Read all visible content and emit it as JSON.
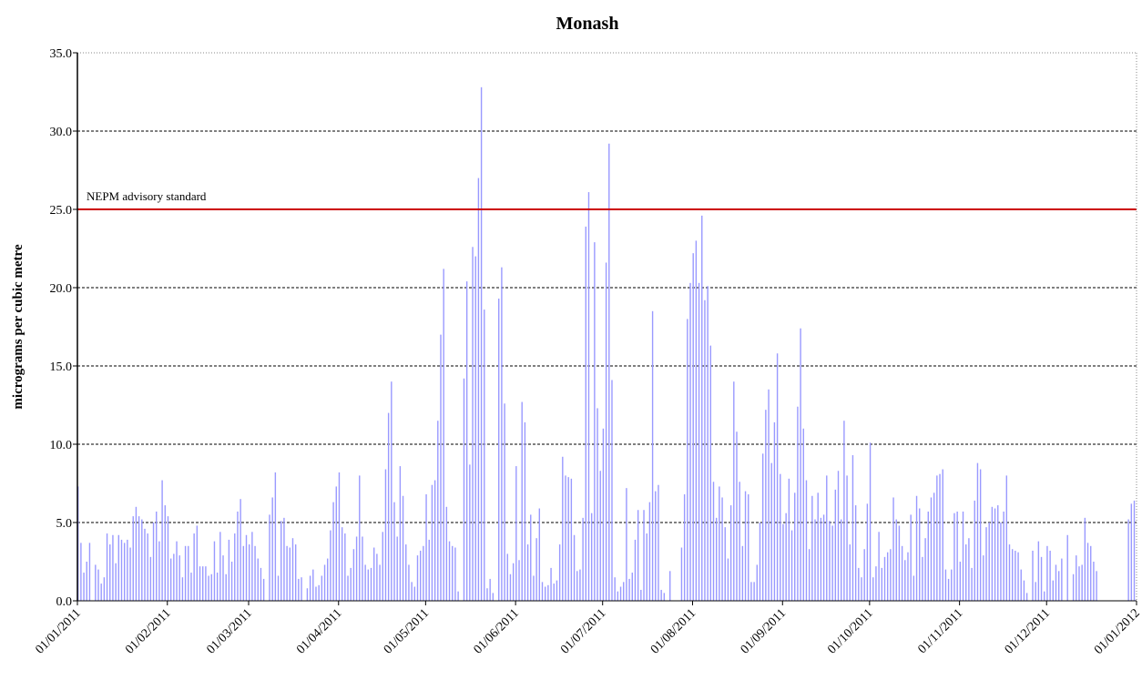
{
  "chart_data": {
    "type": "bar",
    "title": "Monash",
    "y_label": "micrograms per cubic metre",
    "color": "#9999ff",
    "ylim": [
      0,
      35
    ],
    "yticks": [
      {
        "value": 0,
        "label": "0.0"
      },
      {
        "value": 5,
        "label": "5.0"
      },
      {
        "value": 10,
        "label": "10.0"
      },
      {
        "value": 15,
        "label": "15.0"
      },
      {
        "value": 20,
        "label": "20.0"
      },
      {
        "value": 25,
        "label": "25.0"
      },
      {
        "value": 30,
        "label": "30.0"
      },
      {
        "value": 35,
        "label": "35.0"
      }
    ],
    "xlim": [
      "2011-01-01",
      "2012-01-01"
    ],
    "xticks": [
      {
        "value": "2011-01-01",
        "label": "01/01/2011"
      },
      {
        "value": "2011-02-01",
        "label": "01/02/2011"
      },
      {
        "value": "2011-03-01",
        "label": "01/03/2011"
      },
      {
        "value": "2011-04-01",
        "label": "01/04/2011"
      },
      {
        "value": "2011-05-01",
        "label": "01/05/2011"
      },
      {
        "value": "2011-06-01",
        "label": "01/06/2011"
      },
      {
        "value": "2011-07-01",
        "label": "01/07/2011"
      },
      {
        "value": "2011-08-01",
        "label": "01/08/2011"
      },
      {
        "value": "2011-09-01",
        "label": "01/09/2011"
      },
      {
        "value": "2011-10-01",
        "label": "01/10/2011"
      },
      {
        "value": "2011-11-01",
        "label": "01/11/2011"
      },
      {
        "value": "2011-12-01",
        "label": "01/12/2011"
      },
      {
        "value": "2012-01-01",
        "label": "01/01/2012"
      }
    ],
    "grid": true,
    "reference_lines": [
      {
        "value": 25,
        "label": "NEPM advisory standard",
        "color": "#cc0000"
      }
    ],
    "x": [
      "2011-01-01",
      "2011-01-02",
      "2011-01-03",
      "2011-01-04",
      "2011-01-05",
      "2011-01-06",
      "2011-01-07",
      "2011-01-08",
      "2011-01-09",
      "2011-01-10",
      "2011-01-11",
      "2011-01-12",
      "2011-01-13",
      "2011-01-14",
      "2011-01-15",
      "2011-01-16",
      "2011-01-17",
      "2011-01-18",
      "2011-01-19",
      "2011-01-20",
      "2011-01-21",
      "2011-01-22",
      "2011-01-23",
      "2011-01-24",
      "2011-01-25",
      "2011-01-26",
      "2011-01-27",
      "2011-01-28",
      "2011-01-29",
      "2011-01-30",
      "2011-01-31",
      "2011-02-01",
      "2011-02-02",
      "2011-02-03",
      "2011-02-04",
      "2011-02-05",
      "2011-02-06",
      "2011-02-07",
      "2011-02-08",
      "2011-02-09",
      "2011-02-10",
      "2011-02-11",
      "2011-02-12",
      "2011-02-13",
      "2011-02-14",
      "2011-02-15",
      "2011-02-16",
      "2011-02-17",
      "2011-02-18",
      "2011-02-19",
      "2011-02-20",
      "2011-02-21",
      "2011-02-22",
      "2011-02-23",
      "2011-02-24",
      "2011-02-25",
      "2011-02-26",
      "2011-02-27",
      "2011-02-28",
      "2011-03-01",
      "2011-03-02",
      "2011-03-03",
      "2011-03-04",
      "2011-03-05",
      "2011-03-06",
      "2011-03-07",
      "2011-03-08",
      "2011-03-09",
      "2011-03-10",
      "2011-03-11",
      "2011-03-12",
      "2011-03-13",
      "2011-03-14",
      "2011-03-15",
      "2011-03-16",
      "2011-03-17",
      "2011-03-18",
      "2011-03-19",
      "2011-03-20",
      "2011-03-21",
      "2011-03-22",
      "2011-03-23",
      "2011-03-24",
      "2011-03-25",
      "2011-03-26",
      "2011-03-27",
      "2011-03-28",
      "2011-03-29",
      "2011-03-30",
      "2011-03-31",
      "2011-04-01",
      "2011-04-02",
      "2011-04-03",
      "2011-04-04",
      "2011-04-05",
      "2011-04-06",
      "2011-04-07",
      "2011-04-08",
      "2011-04-09",
      "2011-04-10",
      "2011-04-11",
      "2011-04-12",
      "2011-04-13",
      "2011-04-14",
      "2011-04-15",
      "2011-04-16",
      "2011-04-17",
      "2011-04-18",
      "2011-04-19",
      "2011-04-20",
      "2011-04-21",
      "2011-04-22",
      "2011-04-23",
      "2011-04-24",
      "2011-04-25",
      "2011-04-26",
      "2011-04-27",
      "2011-04-28",
      "2011-04-29",
      "2011-04-30",
      "2011-05-01",
      "2011-05-02",
      "2011-05-03",
      "2011-05-04",
      "2011-05-05",
      "2011-05-06",
      "2011-05-07",
      "2011-05-08",
      "2011-05-09",
      "2011-05-10",
      "2011-05-11",
      "2011-05-12",
      "2011-05-13",
      "2011-05-14",
      "2011-05-15",
      "2011-05-16",
      "2011-05-17",
      "2011-05-18",
      "2011-05-19",
      "2011-05-20",
      "2011-05-21",
      "2011-05-22",
      "2011-05-23",
      "2011-05-24",
      "2011-05-25",
      "2011-05-26",
      "2011-05-27",
      "2011-05-28",
      "2011-05-29",
      "2011-05-30",
      "2011-05-31",
      "2011-06-01",
      "2011-06-02",
      "2011-06-03",
      "2011-06-04",
      "2011-06-05",
      "2011-06-06",
      "2011-06-07",
      "2011-06-08",
      "2011-06-09",
      "2011-06-10",
      "2011-06-11",
      "2011-06-12",
      "2011-06-13",
      "2011-06-14",
      "2011-06-15",
      "2011-06-16",
      "2011-06-17",
      "2011-06-18",
      "2011-06-19",
      "2011-06-20",
      "2011-06-21",
      "2011-06-22",
      "2011-06-23",
      "2011-06-24",
      "2011-06-25",
      "2011-06-26",
      "2011-06-27",
      "2011-06-28",
      "2011-06-29",
      "2011-06-30",
      "2011-07-01",
      "2011-07-02",
      "2011-07-03",
      "2011-07-04",
      "2011-07-05",
      "2011-07-06",
      "2011-07-07",
      "2011-07-08",
      "2011-07-09",
      "2011-07-10",
      "2011-07-11",
      "2011-07-12",
      "2011-07-13",
      "2011-07-14",
      "2011-07-15",
      "2011-07-16",
      "2011-07-17",
      "2011-07-18",
      "2011-07-19",
      "2011-07-20",
      "2011-07-21",
      "2011-07-22",
      "2011-07-23",
      "2011-07-24",
      "2011-07-25",
      "2011-07-26",
      "2011-07-27",
      "2011-07-28",
      "2011-07-29",
      "2011-07-30",
      "2011-07-31",
      "2011-08-01",
      "2011-08-02",
      "2011-08-03",
      "2011-08-04",
      "2011-08-05",
      "2011-08-06",
      "2011-08-07",
      "2011-08-08",
      "2011-08-09",
      "2011-08-10",
      "2011-08-11",
      "2011-08-12",
      "2011-08-13",
      "2011-08-14",
      "2011-08-15",
      "2011-08-16",
      "2011-08-17",
      "2011-08-18",
      "2011-08-19",
      "2011-08-20",
      "2011-08-21",
      "2011-08-22",
      "2011-08-23",
      "2011-08-24",
      "2011-08-25",
      "2011-08-26",
      "2011-08-27",
      "2011-08-28",
      "2011-08-29",
      "2011-08-30",
      "2011-08-31",
      "2011-09-01",
      "2011-09-02",
      "2011-09-03",
      "2011-09-04",
      "2011-09-05",
      "2011-09-06",
      "2011-09-07",
      "2011-09-08",
      "2011-09-09",
      "2011-09-10",
      "2011-09-11",
      "2011-09-12",
      "2011-09-13",
      "2011-09-14",
      "2011-09-15",
      "2011-09-16",
      "2011-09-17",
      "2011-09-18",
      "2011-09-19",
      "2011-09-20",
      "2011-09-21",
      "2011-09-22",
      "2011-09-23",
      "2011-09-24",
      "2011-09-25",
      "2011-09-26",
      "2011-09-27",
      "2011-09-28",
      "2011-09-29",
      "2011-09-30",
      "2011-10-01",
      "2011-10-02",
      "2011-10-03",
      "2011-10-04",
      "2011-10-05",
      "2011-10-06",
      "2011-10-07",
      "2011-10-08",
      "2011-10-09",
      "2011-10-10",
      "2011-10-11",
      "2011-10-12",
      "2011-10-13",
      "2011-10-14",
      "2011-10-15",
      "2011-10-16",
      "2011-10-17",
      "2011-10-18",
      "2011-10-19",
      "2011-10-20",
      "2011-10-21",
      "2011-10-22",
      "2011-10-23",
      "2011-10-24",
      "2011-10-25",
      "2011-10-26",
      "2011-10-27",
      "2011-10-28",
      "2011-10-29",
      "2011-10-30",
      "2011-10-31",
      "2011-11-01",
      "2011-11-02",
      "2011-11-03",
      "2011-11-04",
      "2011-11-05",
      "2011-11-06",
      "2011-11-07",
      "2011-11-08",
      "2011-11-09",
      "2011-11-10",
      "2011-11-11",
      "2011-11-12",
      "2011-11-13",
      "2011-11-14",
      "2011-11-15",
      "2011-11-16",
      "2011-11-17",
      "2011-11-18",
      "2011-11-19",
      "2011-11-20",
      "2011-11-21",
      "2011-11-22",
      "2011-11-23",
      "2011-11-24",
      "2011-11-25",
      "2011-11-26",
      "2011-11-27",
      "2011-11-28",
      "2011-11-29",
      "2011-11-30",
      "2011-12-01",
      "2011-12-02",
      "2011-12-03",
      "2011-12-04",
      "2011-12-05",
      "2011-12-06",
      "2011-12-07",
      "2011-12-08",
      "2011-12-09",
      "2011-12-10",
      "2011-12-11",
      "2011-12-12",
      "2011-12-13",
      "2011-12-14",
      "2011-12-15",
      "2011-12-16",
      "2011-12-17",
      "2011-12-18",
      "2011-12-19",
      "2011-12-20",
      "2011-12-21",
      "2011-12-22",
      "2011-12-23",
      "2011-12-24",
      "2011-12-25",
      "2011-12-26",
      "2011-12-27",
      "2011-12-28",
      "2011-12-29",
      "2011-12-30",
      "2011-12-31"
    ],
    "values": [
      7.3,
      3.7,
      1.8,
      2.5,
      3.7,
      null,
      2.3,
      2.0,
      1.1,
      1.5,
      4.3,
      3.6,
      4.2,
      2.4,
      4.2,
      3.9,
      3.7,
      3.9,
      3.4,
      5.4,
      6.0,
      5.4,
      5.2,
      4.6,
      4.3,
      2.8,
      5.0,
      5.7,
      3.8,
      7.7,
      6.1,
      5.4,
      2.7,
      3.0,
      3.8,
      2.9,
      1.5,
      3.5,
      3.5,
      1.8,
      4.3,
      4.8,
      2.2,
      2.2,
      2.2,
      1.6,
      1.7,
      3.8,
      1.8,
      4.4,
      2.9,
      1.7,
      3.9,
      2.5,
      4.3,
      5.7,
      6.5,
      3.5,
      4.2,
      3.6,
      4.4,
      3.5,
      2.7,
      2.1,
      1.4,
      null,
      5.5,
      6.6,
      8.2,
      1.6,
      5.1,
      5.3,
      3.5,
      3.4,
      4.0,
      3.6,
      1.4,
      1.5,
      null,
      0.8,
      1.6,
      2.0,
      0.9,
      1.0,
      1.6,
      2.3,
      2.7,
      4.5,
      6.3,
      7.3,
      8.2,
      4.7,
      4.3,
      1.6,
      2.1,
      3.3,
      4.1,
      8.0,
      4.1,
      2.3,
      2.0,
      2.1,
      3.4,
      3.0,
      2.3,
      4.4,
      8.4,
      12.0,
      14.0,
      6.3,
      4.1,
      8.6,
      6.7,
      3.6,
      2.3,
      1.2,
      0.9,
      2.9,
      3.2,
      3.5,
      6.8,
      3.9,
      7.4,
      7.7,
      11.5,
      17.0,
      21.2,
      6.0,
      3.8,
      3.5,
      3.4,
      0.6,
      null,
      14.2,
      20.4,
      8.7,
      22.6,
      22.0,
      27.0,
      32.8,
      18.6,
      0.8,
      1.4,
      0.5,
      null,
      19.3,
      21.3,
      12.6,
      3.0,
      1.7,
      2.4,
      8.6,
      2.6,
      12.7,
      11.4,
      3.6,
      5.5,
      1.6,
      4.0,
      5.9,
      1.2,
      0.9,
      1.0,
      2.1,
      1.1,
      1.3,
      3.6,
      9.2,
      8.0,
      7.9,
      7.8,
      4.2,
      1.9,
      2.0,
      5.3,
      23.9,
      26.1,
      5.6,
      22.9,
      12.3,
      8.3,
      11.0,
      21.6,
      29.2,
      14.1,
      1.5,
      0.6,
      0.9,
      1.2,
      7.2,
      1.4,
      1.8,
      3.9,
      5.8,
      0.7,
      5.8,
      4.3,
      6.3,
      18.5,
      7.0,
      7.4,
      0.7,
      0.5,
      null,
      1.9,
      null,
      null,
      null,
      3.4,
      6.8,
      18.0,
      20.3,
      22.2,
      23.0,
      20.3,
      24.6,
      19.2,
      20.1,
      16.3,
      7.6,
      5.3,
      7.3,
      6.6,
      4.7,
      2.7,
      6.1,
      14.0,
      10.8,
      7.6,
      3.5,
      7.0,
      6.8,
      1.2,
      1.2,
      2.3,
      5.0,
      9.4,
      12.2,
      13.5,
      8.8,
      11.4,
      15.8,
      8.1,
      4.9,
      5.6,
      7.8,
      4.5,
      6.9,
      12.4,
      17.4,
      11.0,
      7.7,
      3.3,
      6.7,
      5.2,
      6.9,
      5.3,
      5.5,
      8.0,
      5.1,
      4.8,
      7.1,
      8.3,
      5.2,
      11.5,
      8.0,
      3.6,
      9.3,
      6.1,
      2.1,
      1.5,
      3.3,
      6.2,
      10.1,
      1.5,
      2.2,
      4.4,
      2.1,
      2.8,
      3.1,
      3.3,
      6.6,
      5.2,
      4.8,
      3.5,
      2.6,
      3.1,
      5.5,
      1.6,
      6.7,
      5.9,
      2.8,
      4.0,
      5.7,
      6.6,
      6.9,
      8.0,
      8.1,
      8.4,
      2.0,
      1.4,
      2.0,
      5.6,
      5.7,
      2.5,
      5.7,
      3.6,
      4.0,
      2.1,
      6.4,
      8.8,
      8.4,
      2.9,
      4.7,
      5.0,
      6.0,
      5.9,
      6.1,
      5.0,
      5.7,
      8.0,
      3.6,
      3.3,
      3.2,
      3.1,
      2.0,
      1.3,
      0.5,
      null,
      3.2,
      1.2,
      3.8,
      2.8,
      0.6,
      3.5,
      3.2,
      1.3,
      2.3,
      1.9,
      2.7,
      null,
      4.2,
      null,
      1.7,
      2.9,
      2.2,
      2.3,
      5.3,
      3.7,
      3.5,
      2.5,
      1.9,
      null,
      null,
      null,
      null,
      null,
      null,
      null,
      null,
      null,
      null,
      5.2,
      6.2,
      6.4
    ]
  }
}
